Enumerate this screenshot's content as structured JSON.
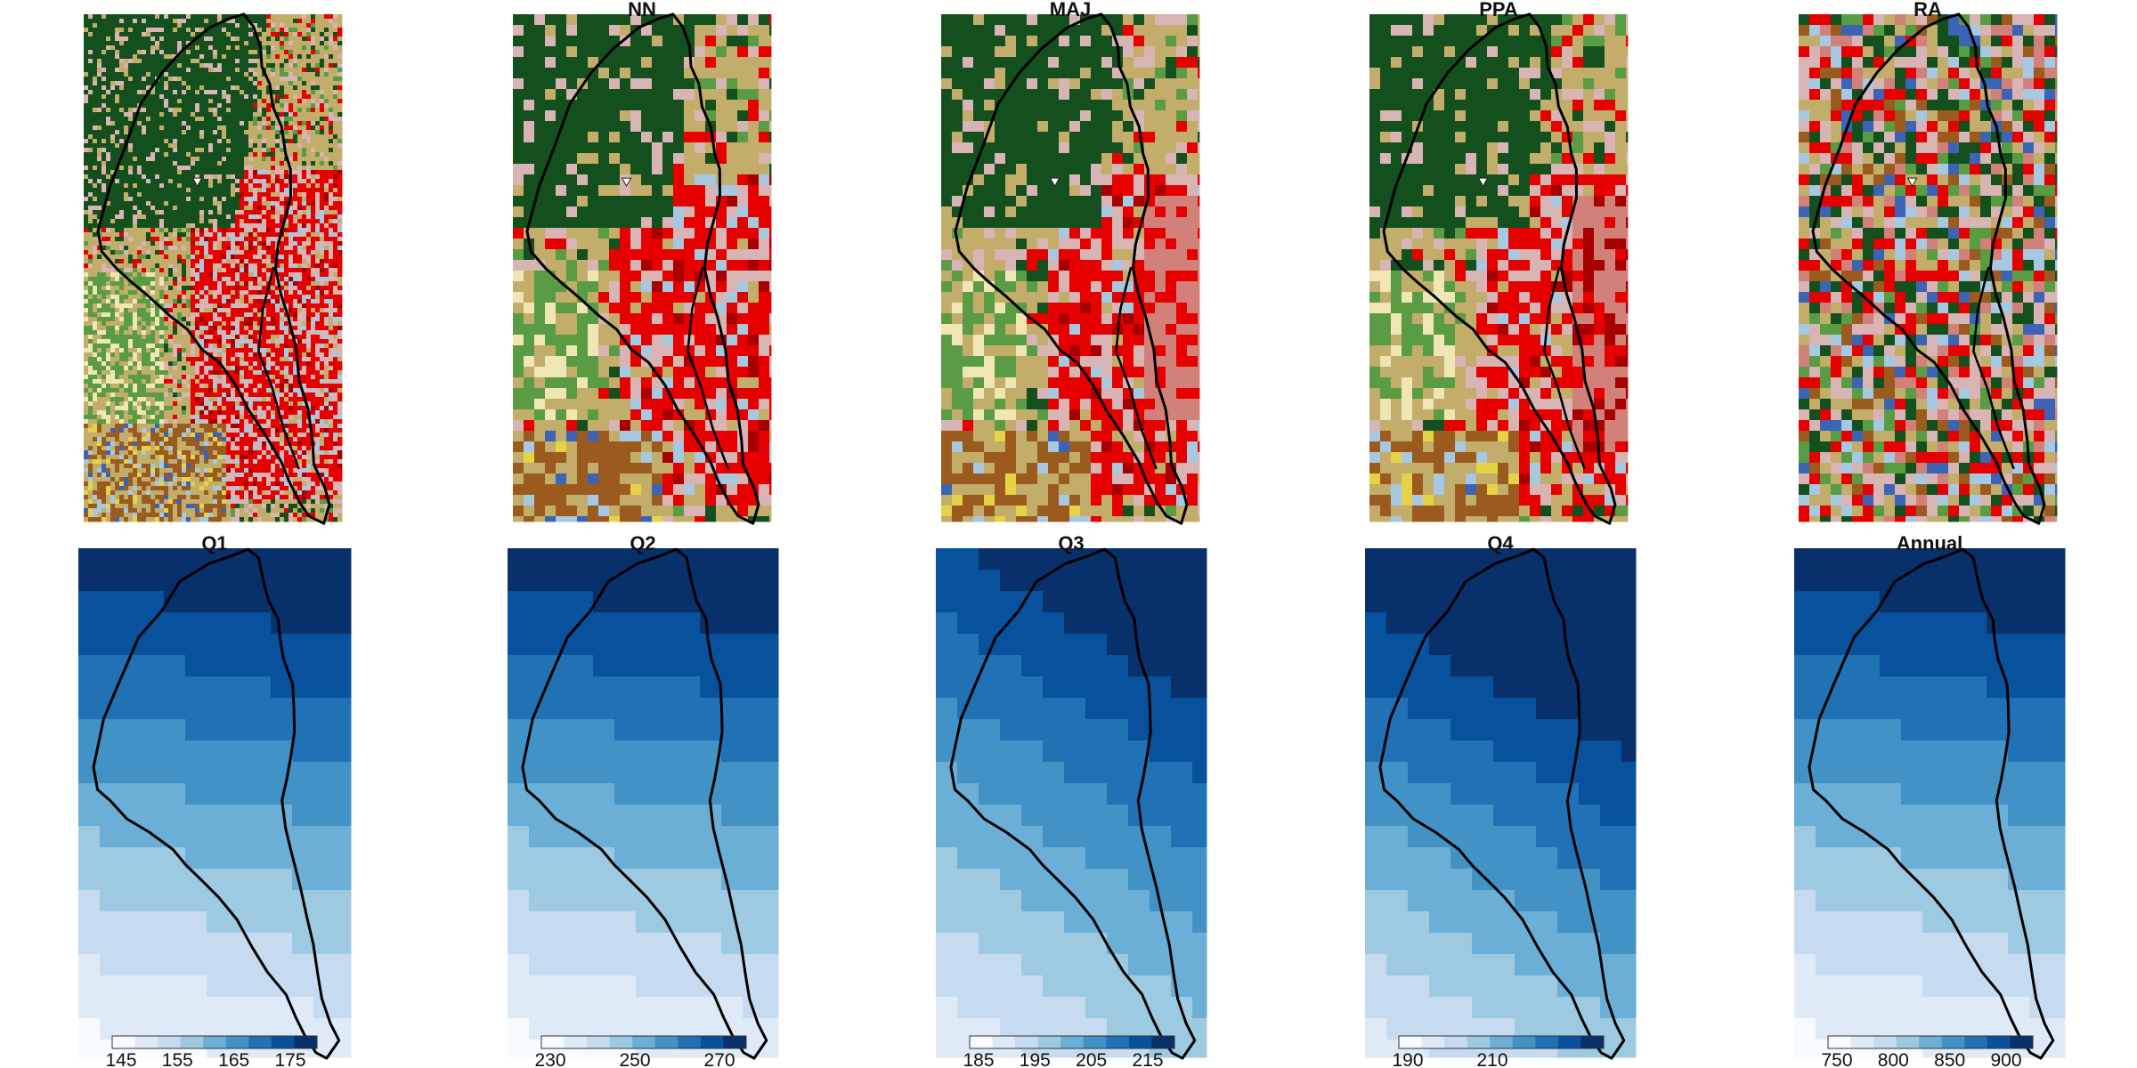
{
  "figure": {
    "top_row": {
      "panels": [
        {
          "id": "original",
          "title": "",
          "style": "fine"
        },
        {
          "id": "nn",
          "title": "NN",
          "style": "coarse-nn"
        },
        {
          "id": "maj",
          "title": "MAJ",
          "style": "coarse-maj"
        },
        {
          "id": "ppa",
          "title": "PPA",
          "style": "coarse-ppa"
        },
        {
          "id": "ra",
          "title": "RA",
          "style": "random"
        }
      ],
      "landcover_palette": [
        "#14501e",
        "#c2ad6b",
        "#e60000",
        "#d8b4b4",
        "#d2807a",
        "#a80000",
        "#5a9c44",
        "#2c6e2c",
        "#9b5a1e",
        "#a6c8e0",
        "#3c64b4",
        "#e6d246",
        "#f0e6b4"
      ]
    },
    "bottom_row": {
      "panels": [
        {
          "id": "q1",
          "title": "Q1",
          "ticks": [
            "145",
            "155",
            "165",
            "175"
          ]
        },
        {
          "id": "q2",
          "title": "Q2",
          "ticks": [
            "230",
            "250",
            "270"
          ]
        },
        {
          "id": "q3",
          "title": "Q3",
          "ticks": [
            "185",
            "195",
            "205",
            "215"
          ]
        },
        {
          "id": "q4",
          "title": "Q4",
          "ticks": [
            "190",
            "210"
          ]
        },
        {
          "id": "annual",
          "title": "Annual",
          "ticks": [
            "750",
            "800",
            "850",
            "900"
          ]
        }
      ],
      "blues_palette": [
        "#f7fbff",
        "#deebf7",
        "#c6dbef",
        "#9ecae1",
        "#6baed6",
        "#4292c6",
        "#2171b5",
        "#08519c",
        "#08306b"
      ]
    },
    "boundary_color": "#000000"
  }
}
